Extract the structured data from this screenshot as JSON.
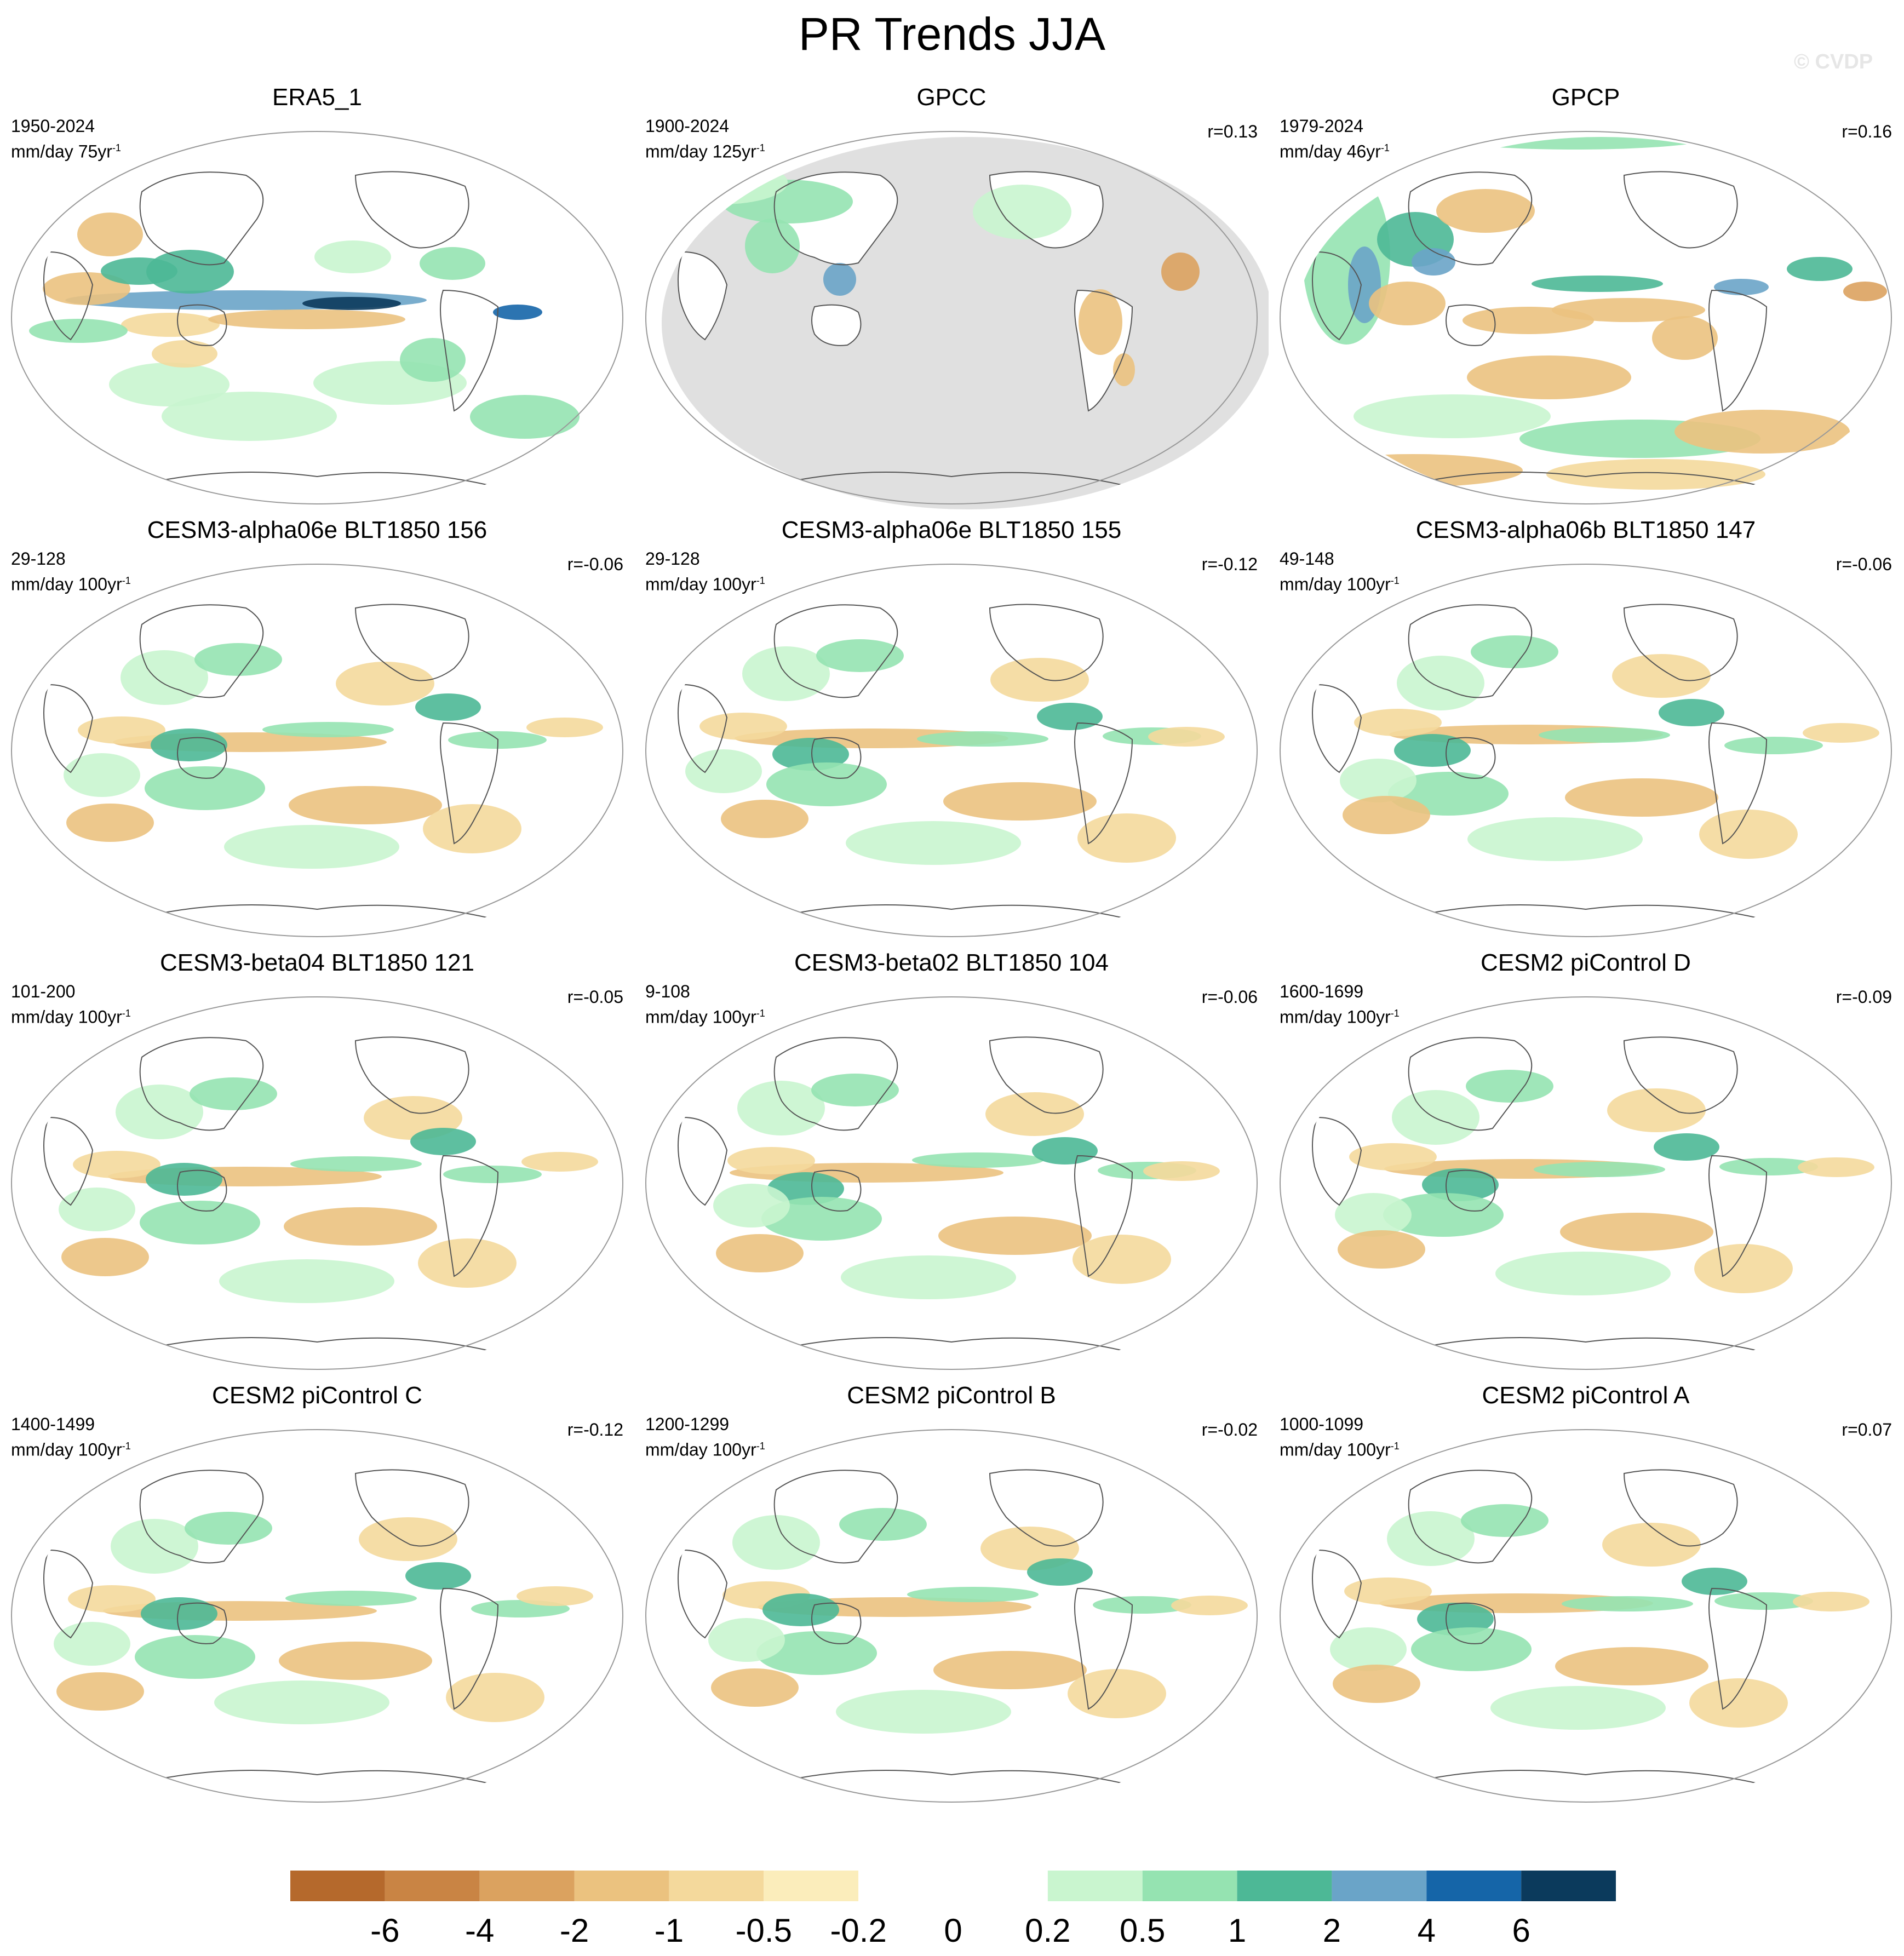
{
  "figure": {
    "title": "PR Trends JJA",
    "watermark": "© CVDP"
  },
  "panels": [
    {
      "title": "ERA5_1",
      "years": "1950-2024",
      "units": "mm/day 75yr",
      "units_sup": "-1",
      "corr": "",
      "pattern": "strong"
    },
    {
      "title": "GPCC",
      "years": "1900-2024",
      "units": "mm/day 125yr",
      "units_sup": "-1",
      "corr": "r=0.13",
      "pattern": "land"
    },
    {
      "title": "GPCP",
      "years": "1979-2024",
      "units": "mm/day 46yr",
      "units_sup": "-1",
      "corr": "r=0.16",
      "pattern": "gpcp"
    },
    {
      "title": "CESM3-alpha06e BLT1850 156",
      "years": "29-128",
      "units": "mm/day 100yr",
      "units_sup": "-1",
      "corr": "r=-0.06",
      "pattern": "model"
    },
    {
      "title": "CESM3-alpha06e BLT1850 155",
      "years": "29-128",
      "units": "mm/day 100yr",
      "units_sup": "-1",
      "corr": "r=-0.12",
      "pattern": "model"
    },
    {
      "title": "CESM3-alpha06b BLT1850 147",
      "years": "49-148",
      "units": "mm/day 100yr",
      "units_sup": "-1",
      "corr": "r=-0.06",
      "pattern": "model"
    },
    {
      "title": "CESM3-beta04 BLT1850 121",
      "years": "101-200",
      "units": "mm/day 100yr",
      "units_sup": "-1",
      "corr": "r=-0.05",
      "pattern": "model"
    },
    {
      "title": "CESM3-beta02 BLT1850 104",
      "years": "9-108",
      "units": "mm/day 100yr",
      "units_sup": "-1",
      "corr": "r=-0.06",
      "pattern": "model"
    },
    {
      "title": "CESM2 piControl D",
      "years": "1600-1699",
      "units": "mm/day 100yr",
      "units_sup": "-1",
      "corr": "r=-0.09",
      "pattern": "model"
    },
    {
      "title": "CESM2 piControl C",
      "years": "1400-1499",
      "units": "mm/day 100yr",
      "units_sup": "-1",
      "corr": "r=-0.12",
      "pattern": "model"
    },
    {
      "title": "CESM2 piControl B",
      "years": "1200-1299",
      "units": "mm/day 100yr",
      "units_sup": "-1",
      "corr": "r=-0.02",
      "pattern": "model"
    },
    {
      "title": "CESM2 piControl A",
      "years": "1000-1099",
      "units": "mm/day 100yr",
      "units_sup": "-1",
      "corr": "r=0.07",
      "pattern": "model"
    }
  ],
  "colorbar": {
    "labels": [
      "-6",
      "-4",
      "-2",
      "-1",
      "-0.5",
      "-0.2",
      "0",
      "0.2",
      "0.5",
      "1",
      "2",
      "4",
      "6"
    ],
    "colors": [
      "#b5692c",
      "#c98444",
      "#dba25f",
      "#ebc27f",
      "#f4d99c",
      "#fbedbb",
      "#ffffff",
      "#ffffff",
      "#c9f5cf",
      "#95e3b1",
      "#4db896",
      "#6aa4c8",
      "#1565a8",
      "#0b3a5c"
    ]
  },
  "map_style": {
    "land_mask": "#e0e0e0",
    "coast": "#555555",
    "frame": "#999999"
  }
}
